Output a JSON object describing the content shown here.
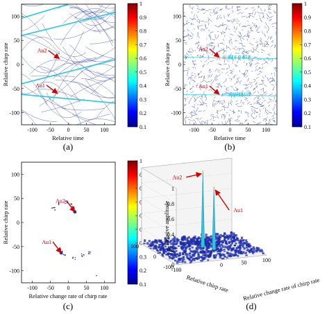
{
  "chart_data": [
    {
      "panel": "(a)",
      "type": "heatmap",
      "xlabel": "Relative time",
      "ylabel": "Relative chirp rate",
      "x_ticks": [
        "-100",
        "-50",
        "0",
        "50",
        "100"
      ],
      "y_ticks": [
        "100",
        "50",
        "0",
        "-50",
        "-100"
      ],
      "xlim": [
        -130,
        130
      ],
      "ylim": [
        -125,
        125
      ],
      "colorbar_ticks": [
        "1",
        "0.9",
        "0.8",
        "0.7",
        "0.6",
        "0.5",
        "0.4",
        "0.3",
        "0.2",
        "0.1"
      ],
      "colorbar_range": [
        0.1,
        1
      ],
      "annotations": [
        {
          "label": "Au2",
          "x": -25,
          "y": 12
        },
        {
          "label": "Au1",
          "x": -30,
          "y": -60
        }
      ],
      "caption": "(a)"
    },
    {
      "panel": "(b)",
      "type": "heatmap",
      "xlabel": "Relative time",
      "ylabel": "Relative chirp rate",
      "x_ticks": [
        "-100",
        "-50",
        "0",
        "50",
        "100"
      ],
      "y_ticks": [
        "100",
        "50",
        "0",
        "-50",
        "-100"
      ],
      "xlim": [
        -130,
        130
      ],
      "ylim": [
        -125,
        125
      ],
      "colorbar_ticks": [
        "1",
        "0.9",
        "0.8",
        "0.7",
        "0.6",
        "0.5",
        "0.4",
        "0.3",
        "0.2",
        "0.1"
      ],
      "colorbar_range": [
        0.1,
        1
      ],
      "annotations": [
        {
          "label": "Au2",
          "x": -30,
          "y": 15
        },
        {
          "label": "Au1",
          "x": -30,
          "y": -62
        }
      ],
      "caption": "(b)"
    },
    {
      "panel": "(c)",
      "type": "heatmap",
      "xlabel": "Relative change rate of chirp rate",
      "ylabel": "Relative chirp rate",
      "x_ticks": [
        "-100",
        "-50",
        "0",
        "50",
        "100"
      ],
      "y_ticks": [
        "100",
        "50",
        "0",
        "-50",
        "-100"
      ],
      "xlim": [
        -130,
        130
      ],
      "ylim": [
        -125,
        125
      ],
      "colorbar_ticks": [
        "1",
        "0.9",
        "0.8",
        "0.7",
        "0.6",
        "0.5",
        "0.4",
        "0.3",
        "0.2",
        "0.1"
      ],
      "colorbar_range": [
        0.1,
        1
      ],
      "annotations": [
        {
          "label": "Au2",
          "x": 18,
          "y": 22
        },
        {
          "label": "Au1",
          "x": -20,
          "y": -63
        }
      ],
      "caption": "(c)"
    },
    {
      "panel": "(d)",
      "type": "surface",
      "zlabel": "Relative amplitude",
      "xlabel": "Relative chirp rate",
      "ylabel": "Relative change rate of chirp rate",
      "z_ticks": [
        "0",
        "0.2",
        "0.4",
        "0.6",
        "0.8",
        "1"
      ],
      "chirp_ticks": [
        "100",
        "0",
        "-100"
      ],
      "change_ticks": [
        "-100",
        "0",
        "50",
        "100"
      ],
      "peaks": [
        {
          "label": "Au2",
          "amplitude": 1.0
        },
        {
          "label": "Au1",
          "amplitude": 0.82
        }
      ],
      "caption": "(d)"
    }
  ],
  "colors": {
    "trace": "#1c2fb0",
    "highlight": "#26c9e0",
    "arrow": "#d40000",
    "surface": "#1a2aa8"
  }
}
